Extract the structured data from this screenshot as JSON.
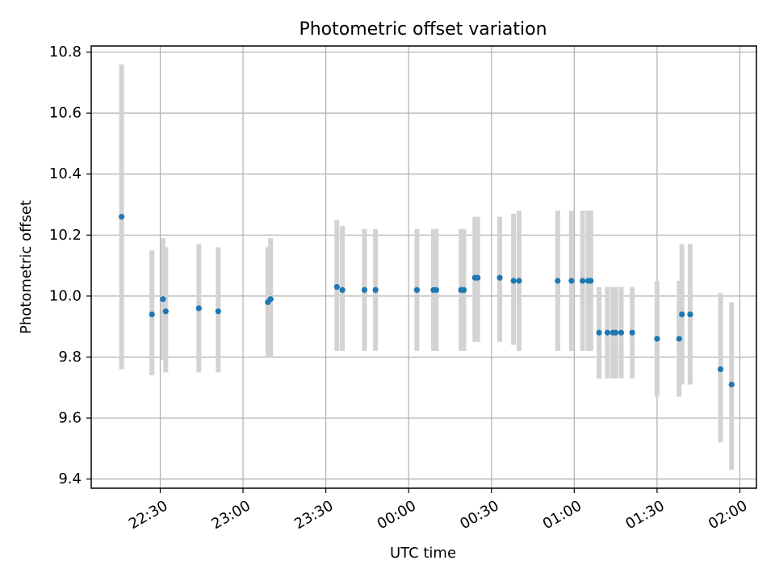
{
  "chart_data": {
    "type": "scatter",
    "title": "Photometric offset variation",
    "xlabel": "UTC time",
    "ylabel": "Photometric offset",
    "grid": true,
    "legend": "none",
    "xlim": [
      "22:05",
      "02:06"
    ],
    "ylim": [
      9.37,
      10.82
    ],
    "x_ticks": [
      "22:30",
      "23:00",
      "23:30",
      "00:00",
      "00:30",
      "01:00",
      "01:30",
      "02:00"
    ],
    "y_ticks": [
      "9.4",
      "9.6",
      "9.8",
      "10.0",
      "10.2",
      "10.4",
      "10.6",
      "10.8"
    ],
    "x_tick_values": [
      "22:30",
      "23:00",
      "23:30",
      "00:00",
      "00:30",
      "01:00",
      "01:30",
      "02:00"
    ],
    "y_tick_values": [
      9.4,
      9.6,
      9.8,
      10.0,
      10.2,
      10.4,
      10.6,
      10.8
    ],
    "colors": {
      "point": "#1f77b4",
      "errorbar": "#d3d3d3",
      "grid": "#b0b0b0"
    },
    "series": [
      {
        "points": [
          {
            "x": "22:16",
            "y": 10.26,
            "err_low": 9.76,
            "err_high": 10.76
          },
          {
            "x": "22:27",
            "y": 9.94,
            "err_low": 9.74,
            "err_high": 10.15
          },
          {
            "x": "22:31",
            "y": 9.99,
            "err_low": 9.79,
            "err_high": 10.19
          },
          {
            "x": "22:32",
            "y": 9.95,
            "err_low": 9.75,
            "err_high": 10.16
          },
          {
            "x": "22:44",
            "y": 9.96,
            "err_low": 9.75,
            "err_high": 10.17
          },
          {
            "x": "22:51",
            "y": 9.95,
            "err_low": 9.75,
            "err_high": 10.16
          },
          {
            "x": "23:09",
            "y": 9.98,
            "err_low": 9.8,
            "err_high": 10.16
          },
          {
            "x": "23:10",
            "y": 9.99,
            "err_low": 9.8,
            "err_high": 10.19
          },
          {
            "x": "23:34",
            "y": 10.03,
            "err_low": 9.82,
            "err_high": 10.25
          },
          {
            "x": "23:36",
            "y": 10.02,
            "err_low": 9.82,
            "err_high": 10.23
          },
          {
            "x": "23:44",
            "y": 10.02,
            "err_low": 9.82,
            "err_high": 10.22
          },
          {
            "x": "23:48",
            "y": 10.02,
            "err_low": 9.82,
            "err_high": 10.22
          },
          {
            "x": "00:03",
            "y": 10.02,
            "err_low": 9.82,
            "err_high": 10.22
          },
          {
            "x": "00:09",
            "y": 10.02,
            "err_low": 9.82,
            "err_high": 10.22
          },
          {
            "x": "00:10",
            "y": 10.02,
            "err_low": 9.82,
            "err_high": 10.22
          },
          {
            "x": "00:19",
            "y": 10.02,
            "err_low": 9.82,
            "err_high": 10.22
          },
          {
            "x": "00:20",
            "y": 10.02,
            "err_low": 9.82,
            "err_high": 10.22
          },
          {
            "x": "00:24",
            "y": 10.06,
            "err_low": 9.85,
            "err_high": 10.26
          },
          {
            "x": "00:25",
            "y": 10.06,
            "err_low": 9.85,
            "err_high": 10.26
          },
          {
            "x": "00:33",
            "y": 10.06,
            "err_low": 9.85,
            "err_high": 10.26
          },
          {
            "x": "00:38",
            "y": 10.05,
            "err_low": 9.84,
            "err_high": 10.27
          },
          {
            "x": "00:40",
            "y": 10.05,
            "err_low": 9.82,
            "err_high": 10.28
          },
          {
            "x": "00:54",
            "y": 10.05,
            "err_low": 9.82,
            "err_high": 10.28
          },
          {
            "x": "00:59",
            "y": 10.05,
            "err_low": 9.82,
            "err_high": 10.28
          },
          {
            "x": "01:03",
            "y": 10.05,
            "err_low": 9.82,
            "err_high": 10.28
          },
          {
            "x": "01:05",
            "y": 10.05,
            "err_low": 9.82,
            "err_high": 10.28
          },
          {
            "x": "01:06",
            "y": 10.05,
            "err_low": 9.82,
            "err_high": 10.28
          },
          {
            "x": "01:09",
            "y": 9.88,
            "err_low": 9.73,
            "err_high": 10.03
          },
          {
            "x": "01:12",
            "y": 9.88,
            "err_low": 9.73,
            "err_high": 10.03
          },
          {
            "x": "01:14",
            "y": 9.88,
            "err_low": 9.73,
            "err_high": 10.03
          },
          {
            "x": "01:15",
            "y": 9.88,
            "err_low": 9.73,
            "err_high": 10.03
          },
          {
            "x": "01:17",
            "y": 9.88,
            "err_low": 9.73,
            "err_high": 10.03
          },
          {
            "x": "01:21",
            "y": 9.88,
            "err_low": 9.73,
            "err_high": 10.03
          },
          {
            "x": "01:30",
            "y": 9.86,
            "err_low": 9.67,
            "err_high": 10.05
          },
          {
            "x": "01:38",
            "y": 9.86,
            "err_low": 9.67,
            "err_high": 10.05
          },
          {
            "x": "01:39",
            "y": 9.94,
            "err_low": 9.71,
            "err_high": 10.17
          },
          {
            "x": "01:42",
            "y": 9.94,
            "err_low": 9.71,
            "err_high": 10.17
          },
          {
            "x": "01:53",
            "y": 9.76,
            "err_low": 9.52,
            "err_high": 10.01
          },
          {
            "x": "01:57",
            "y": 9.71,
            "err_low": 9.43,
            "err_high": 9.98
          }
        ]
      }
    ]
  }
}
